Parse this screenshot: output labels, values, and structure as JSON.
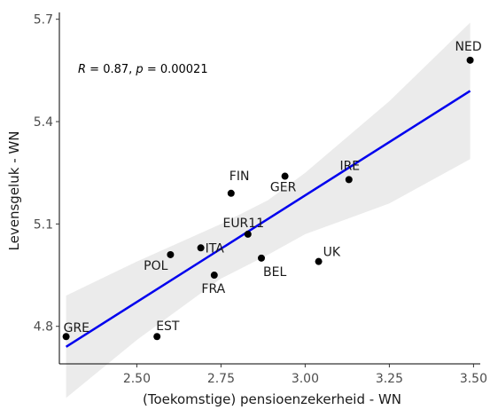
{
  "chart_data": {
    "type": "scatter",
    "title": "",
    "xlabel": "(Toekomstige) pensioenzekerheid - WN",
    "ylabel": "Levensgeluk - WN",
    "xlim": [
      2.27,
      3.52
    ],
    "ylim": [
      4.69,
      5.72
    ],
    "xticks": [
      2.5,
      2.75,
      3.0,
      3.25,
      3.5
    ],
    "xtick_labels": [
      "2.50",
      "2.75",
      "3.00",
      "3.25",
      "3.50"
    ],
    "yticks": [
      4.8,
      5.1,
      5.4,
      5.7
    ],
    "ytick_labels": [
      "4.8",
      "5.1",
      "5.4",
      "5.7"
    ],
    "grid": false,
    "annotation": {
      "prefix": "R",
      "middle": " = 0.87, ",
      "p": "p",
      "suffix": " = 0.00021"
    },
    "points": [
      {
        "label": "NED",
        "x": 3.49,
        "y": 5.58
      },
      {
        "label": "IRE",
        "x": 3.13,
        "y": 5.23
      },
      {
        "label": "GER",
        "x": 2.94,
        "y": 5.24
      },
      {
        "label": "FIN",
        "x": 2.78,
        "y": 5.19
      },
      {
        "label": "EUR11",
        "x": 2.83,
        "y": 5.07
      },
      {
        "label": "ITA",
        "x": 2.69,
        "y": 5.03
      },
      {
        "label": "POL",
        "x": 2.6,
        "y": 5.01
      },
      {
        "label": "BEL",
        "x": 2.87,
        "y": 5.0
      },
      {
        "label": "UK",
        "x": 3.04,
        "y": 4.99
      },
      {
        "label": "FRA",
        "x": 2.73,
        "y": 4.95
      },
      {
        "label": "GRE",
        "x": 2.29,
        "y": 4.77
      },
      {
        "label": "EST",
        "x": 2.56,
        "y": 4.77
      }
    ],
    "regression": {
      "x": [
        2.29,
        3.49
      ],
      "y": [
        4.74,
        5.49
      ],
      "color": "#0000ee"
    },
    "confidence_band": {
      "x": [
        2.29,
        2.5,
        2.75,
        2.89,
        3.0,
        3.25,
        3.49
      ],
      "upper": [
        4.89,
        4.99,
        5.1,
        5.17,
        5.25,
        5.46,
        5.69
      ],
      "lower": [
        4.59,
        4.76,
        4.94,
        5.01,
        5.07,
        5.16,
        5.29
      ],
      "color": "#ebebeb"
    }
  }
}
